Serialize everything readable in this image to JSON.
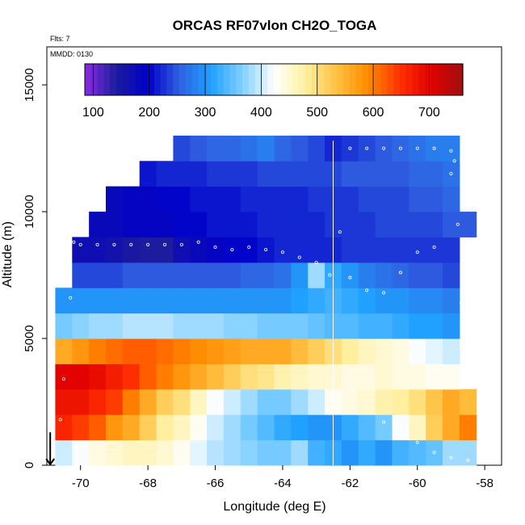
{
  "chart_data": {
    "type": "heatmap",
    "title": "ORCAS RF07vlon CH2O_TOGA",
    "xlabel": "Longitude (deg E)",
    "ylabel": "Altitude (m)",
    "annotations": {
      "flights": "Flts: 7",
      "date": "MMDD: 0130"
    },
    "xlim": [
      -71.0,
      -57.5
    ],
    "ylim": [
      0,
      16500
    ],
    "x_ticks": [
      -70,
      -68,
      -66,
      -64,
      -62,
      -60,
      -58
    ],
    "x_tick_labels": [
      "-70",
      "-68",
      "-66",
      "-64",
      "-62",
      "-60",
      "-58"
    ],
    "y_ticks": [
      0,
      5000,
      10000,
      15000
    ],
    "y_tick_labels": [
      "0",
      "5000",
      "10000",
      "15000"
    ],
    "colorbar": {
      "min": 85,
      "max": 760,
      "ticks": [
        100,
        200,
        300,
        400,
        500,
        600,
        700
      ],
      "tick_labels": [
        "100",
        "200",
        "300",
        "400",
        "500",
        "600",
        "700"
      ],
      "colors": [
        "#8a2be2",
        "#1c1c9c",
        "#0000c8",
        "#3060e0",
        "#20a0ff",
        "#80d0ff",
        "#ffffff",
        "#fff0a0",
        "#ffc040",
        "#ff8c00",
        "#ff3000",
        "#e00000",
        "#a01010"
      ]
    },
    "vertical_marker_x": -62.5,
    "arrow_marker_x": -70.9,
    "grid_x": [
      -70.5,
      -70,
      -69.5,
      -69,
      -68.5,
      -68,
      -67.5,
      -67,
      -66.5,
      -66,
      -65.5,
      -65,
      -64.5,
      -64,
      -63.5,
      -63,
      -62.5,
      -62,
      -61.5,
      -61,
      -60.5,
      -60,
      -59.5,
      -59,
      -58.5
    ],
    "grid_y": [
      500,
      1500,
      2500,
      3500,
      4500,
      5500,
      6500,
      7500,
      8500,
      9500,
      10500,
      11500,
      12500
    ],
    "values": [
      [
        400,
        420,
        440,
        450,
        460,
        460,
        450,
        430,
        410,
        390,
        380,
        370,
        360,
        360,
        380,
        330,
        320,
        300,
        320,
        300,
        330,
        340,
        350,
        380,
        380
      ],
      [
        660,
        640,
        620,
        580,
        560,
        520,
        480,
        460,
        430,
        400,
        380,
        360,
        340,
        320,
        310,
        300,
        300,
        320,
        340,
        360,
        420,
        460,
        520,
        560,
        600
      ],
      [
        680,
        680,
        660,
        640,
        600,
        560,
        520,
        500,
        460,
        420,
        400,
        380,
        360,
        360,
        380,
        400,
        430,
        440,
        450,
        470,
        480,
        500,
        530,
        560,
        540
      ],
      [
        700,
        700,
        690,
        670,
        650,
        620,
        600,
        580,
        560,
        540,
        520,
        500,
        490,
        470,
        460,
        450,
        450,
        440,
        440,
        450,
        440,
        440,
        430,
        430,
        null
      ],
      [
        560,
        580,
        600,
        610,
        620,
        620,
        610,
        600,
        590,
        580,
        570,
        560,
        560,
        560,
        540,
        520,
        500,
        480,
        460,
        450,
        440,
        420,
        410,
        400,
        null
      ],
      [
        360,
        370,
        380,
        380,
        390,
        390,
        390,
        380,
        380,
        380,
        370,
        370,
        360,
        360,
        360,
        350,
        340,
        340,
        330,
        330,
        320,
        310,
        310,
        300,
        null
      ],
      [
        300,
        300,
        300,
        300,
        300,
        300,
        300,
        300,
        300,
        300,
        300,
        300,
        300,
        300,
        310,
        320,
        330,
        320,
        310,
        300,
        300,
        290,
        290,
        280,
        null
      ],
      [
        null,
        240,
        240,
        240,
        250,
        250,
        250,
        250,
        250,
        250,
        250,
        260,
        260,
        270,
        300,
        380,
        320,
        300,
        280,
        270,
        260,
        250,
        250,
        240,
        null
      ],
      [
        null,
        170,
        170,
        160,
        150,
        140,
        140,
        170,
        180,
        190,
        200,
        200,
        210,
        220,
        220,
        220,
        220,
        230,
        230,
        230,
        230,
        230,
        230,
        230,
        null
      ],
      [
        null,
        null,
        180,
        180,
        190,
        190,
        190,
        200,
        200,
        210,
        210,
        210,
        220,
        220,
        220,
        220,
        230,
        230,
        230,
        240,
        240,
        240,
        240,
        250,
        250
      ],
      [
        null,
        null,
        null,
        180,
        190,
        190,
        200,
        200,
        210,
        210,
        210,
        220,
        220,
        220,
        220,
        230,
        230,
        230,
        240,
        240,
        240,
        250,
        250,
        260,
        null
      ],
      [
        null,
        null,
        null,
        null,
        null,
        210,
        220,
        220,
        220,
        230,
        230,
        230,
        240,
        240,
        240,
        240,
        240,
        250,
        250,
        250,
        250,
        260,
        260,
        270,
        null
      ],
      [
        null,
        null,
        null,
        null,
        null,
        null,
        null,
        240,
        250,
        260,
        260,
        270,
        280,
        260,
        250,
        240,
        220,
        230,
        240,
        250,
        260,
        270,
        280,
        280,
        null
      ]
    ],
    "track": [
      [
        -70.6,
        1800
      ],
      [
        -70.5,
        3400
      ],
      [
        -70.3,
        6600
      ],
      [
        -70.2,
        8800
      ],
      [
        -70.0,
        8700
      ],
      [
        -69.5,
        8700
      ],
      [
        -69.0,
        8700
      ],
      [
        -68.5,
        8700
      ],
      [
        -68.0,
        8700
      ],
      [
        -67.5,
        8700
      ],
      [
        -67.0,
        8700
      ],
      [
        -66.5,
        8800
      ],
      [
        -66.0,
        8600
      ],
      [
        -65.5,
        8500
      ],
      [
        -65.0,
        8600
      ],
      [
        -64.5,
        8500
      ],
      [
        -64.0,
        8400
      ],
      [
        -63.5,
        8200
      ],
      [
        -63.0,
        8000
      ],
      [
        -62.6,
        7500
      ],
      [
        -62.3,
        9200
      ],
      [
        -62.0,
        7400
      ],
      [
        -61.5,
        6900
      ],
      [
        -61.0,
        6800
      ],
      [
        -60.5,
        7600
      ],
      [
        -60.0,
        8400
      ],
      [
        -59.5,
        8600
      ],
      [
        -59.0,
        11500
      ],
      [
        -58.9,
        12000
      ],
      [
        -58.8,
        9500
      ],
      [
        -58.7,
        6400
      ],
      [
        -62.0,
        12500
      ],
      [
        -61.5,
        12500
      ],
      [
        -61.0,
        12500
      ],
      [
        -60.5,
        12500
      ],
      [
        -60.0,
        12500
      ],
      [
        -59.5,
        12500
      ],
      [
        -59.0,
        12400
      ],
      [
        -62.0,
        3000
      ],
      [
        -61.5,
        2500
      ],
      [
        -61.0,
        1700
      ],
      [
        -60.5,
        1200
      ],
      [
        -60.0,
        900
      ],
      [
        -59.5,
        500
      ],
      [
        -59.0,
        300
      ],
      [
        -58.5,
        200
      ]
    ]
  }
}
